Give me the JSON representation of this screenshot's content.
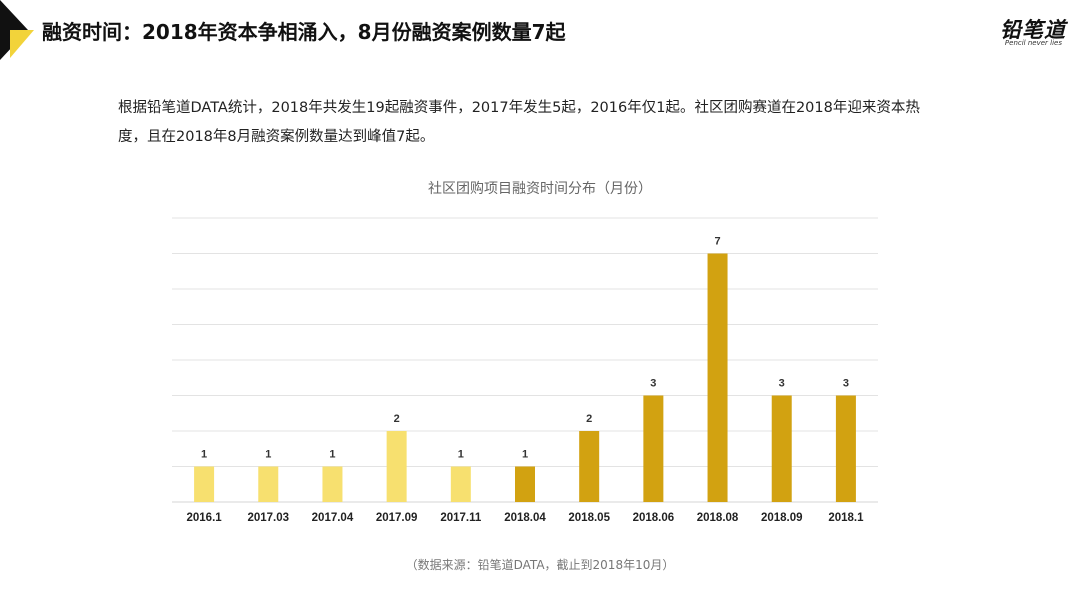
{
  "header": {
    "title": "融资时间：2018年资本争相涌入，8月份融资案例数量7起",
    "logo_main": "铅笔道",
    "logo_sub": "Pencil never lies"
  },
  "description": "根据铅笔道DATA统计，2018年共发生19起融资事件，2017年发生5起，2016年仅1起。社区团购赛道在2018年迎来资本热度，且在2018年8月融资案例数量达到峰值7起。",
  "source_note": "（数据来源：铅笔道DATA，截止到2018年10月）",
  "colors": {
    "light": "#f7e06f",
    "dark": "#d2a211",
    "grid": "#e3e3e3",
    "corner": "#f2d33a"
  },
  "chart_data": {
    "type": "bar",
    "title": "社区团购项目融资时间分布（月份）",
    "categories": [
      "2016.1",
      "2017.03",
      "2017.04",
      "2017.09",
      "2017.11",
      "2018.04",
      "2018.05",
      "2018.06",
      "2018.08",
      "2018.09",
      "2018.1"
    ],
    "values": [
      1,
      1,
      1,
      2,
      1,
      1,
      2,
      3,
      7,
      3,
      3
    ],
    "highlight_from_index": 5,
    "ylim": [
      0,
      8
    ],
    "grid": true,
    "legend": "none"
  }
}
